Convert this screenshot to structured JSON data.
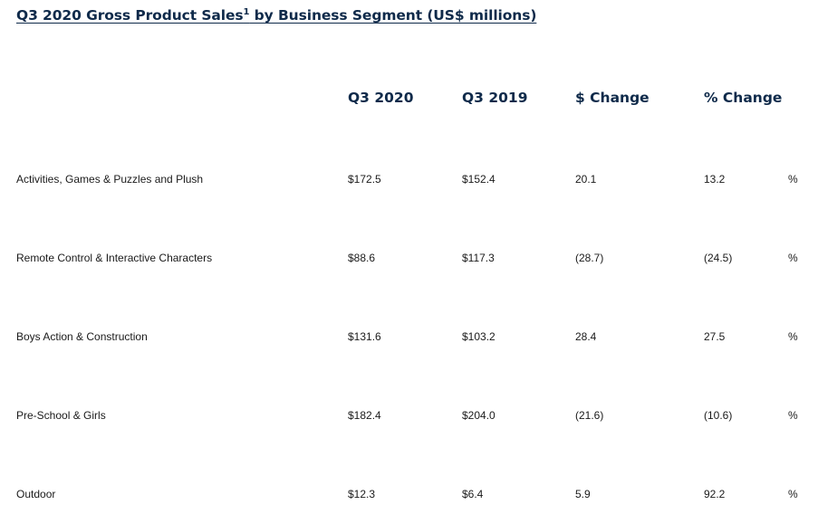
{
  "title": {
    "text": "Q3 2020 Gross Product Sales",
    "footnote": "1",
    "suffix": " by Business Segment (US$ millions)"
  },
  "table": {
    "headers": [
      "Q3 2020",
      "Q3 2019",
      "$ Change",
      "% Change"
    ],
    "rows": [
      {
        "segment": "Activities, Games & Puzzles and Plush",
        "q3_2020": "$172.5",
        "q3_2019": "$152.4",
        "change_usd": "20.1",
        "change_pct": "13.2",
        "pct_sign": "%"
      },
      {
        "segment": "Remote Control & Interactive Characters",
        "q3_2020": "$88.6",
        "q3_2019": "$117.3",
        "change_usd": "(28.7)",
        "change_pct": "(24.5)",
        "pct_sign": "%"
      },
      {
        "segment": "Boys Action & Construction",
        "q3_2020": "$131.6",
        "q3_2019": "$103.2",
        "change_usd": "28.4",
        "change_pct": "27.5",
        "pct_sign": "%"
      },
      {
        "segment": "Pre-School & Girls",
        "q3_2020": "$182.4",
        "q3_2019": "$204.0",
        "change_usd": "(21.6)",
        "change_pct": "(10.6)",
        "pct_sign": "%"
      },
      {
        "segment": "Outdoor",
        "q3_2020": "$12.3",
        "q3_2019": "$6.4",
        "change_usd": "5.9",
        "change_pct": "92.2",
        "pct_sign": "%"
      }
    ]
  }
}
